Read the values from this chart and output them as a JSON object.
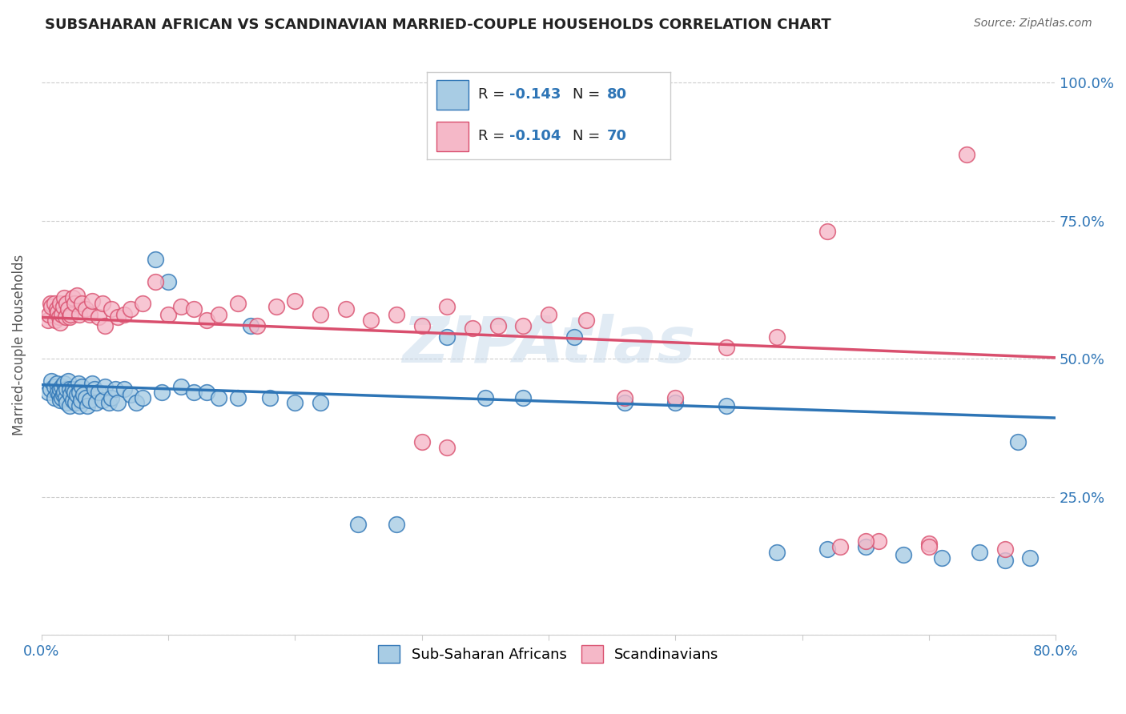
{
  "title": "SUBSAHARAN AFRICAN VS SCANDINAVIAN MARRIED-COUPLE HOUSEHOLDS CORRELATION CHART",
  "source": "Source: ZipAtlas.com",
  "ylabel": "Married-couple Households",
  "legend_label1": "Sub-Saharan Africans",
  "legend_label2": "Scandinavians",
  "R1": "-0.143",
  "N1": "80",
  "R2": "-0.104",
  "N2": "70",
  "color_blue": "#a8cce4",
  "color_pink": "#f5b8c8",
  "line_blue": "#2e75b6",
  "line_pink": "#d94f6e",
  "watermark": "ZIPAtlas",
  "xlim": [
    0.0,
    0.8
  ],
  "ylim": [
    0.0,
    1.05
  ],
  "blue_line_start": 0.453,
  "blue_line_end": 0.393,
  "pink_line_start": 0.575,
  "pink_line_end": 0.502,
  "blue_x": [
    0.005,
    0.007,
    0.008,
    0.01,
    0.01,
    0.012,
    0.013,
    0.014,
    0.015,
    0.015,
    0.016,
    0.016,
    0.017,
    0.018,
    0.018,
    0.019,
    0.02,
    0.02,
    0.021,
    0.022,
    0.022,
    0.023,
    0.025,
    0.025,
    0.026,
    0.027,
    0.028,
    0.029,
    0.03,
    0.03,
    0.031,
    0.032,
    0.033,
    0.035,
    0.036,
    0.038,
    0.04,
    0.042,
    0.043,
    0.045,
    0.048,
    0.05,
    0.053,
    0.055,
    0.058,
    0.06,
    0.065,
    0.07,
    0.075,
    0.08,
    0.09,
    0.095,
    0.1,
    0.11,
    0.12,
    0.13,
    0.14,
    0.155,
    0.165,
    0.18,
    0.2,
    0.22,
    0.25,
    0.28,
    0.32,
    0.35,
    0.38,
    0.42,
    0.46,
    0.5,
    0.54,
    0.58,
    0.62,
    0.65,
    0.68,
    0.71,
    0.74,
    0.76,
    0.77,
    0.78
  ],
  "blue_y": [
    0.44,
    0.445,
    0.46,
    0.45,
    0.43,
    0.455,
    0.44,
    0.435,
    0.445,
    0.425,
    0.45,
    0.43,
    0.435,
    0.455,
    0.44,
    0.43,
    0.445,
    0.42,
    0.46,
    0.445,
    0.415,
    0.435,
    0.445,
    0.425,
    0.44,
    0.42,
    0.435,
    0.455,
    0.44,
    0.415,
    0.425,
    0.45,
    0.435,
    0.43,
    0.415,
    0.425,
    0.455,
    0.445,
    0.42,
    0.44,
    0.425,
    0.45,
    0.42,
    0.43,
    0.445,
    0.42,
    0.445,
    0.435,
    0.42,
    0.43,
    0.68,
    0.44,
    0.64,
    0.45,
    0.44,
    0.44,
    0.43,
    0.43,
    0.56,
    0.43,
    0.42,
    0.42,
    0.2,
    0.2,
    0.54,
    0.43,
    0.43,
    0.54,
    0.42,
    0.42,
    0.415,
    0.15,
    0.155,
    0.16,
    0.145,
    0.14,
    0.15,
    0.135,
    0.35,
    0.14
  ],
  "pink_x": [
    0.005,
    0.006,
    0.007,
    0.008,
    0.01,
    0.011,
    0.012,
    0.013,
    0.014,
    0.015,
    0.015,
    0.016,
    0.017,
    0.018,
    0.019,
    0.02,
    0.021,
    0.022,
    0.023,
    0.025,
    0.026,
    0.028,
    0.03,
    0.032,
    0.035,
    0.038,
    0.04,
    0.045,
    0.048,
    0.05,
    0.055,
    0.06,
    0.065,
    0.07,
    0.08,
    0.09,
    0.1,
    0.11,
    0.12,
    0.13,
    0.14,
    0.155,
    0.17,
    0.185,
    0.2,
    0.22,
    0.24,
    0.26,
    0.28,
    0.3,
    0.32,
    0.34,
    0.36,
    0.38,
    0.4,
    0.43,
    0.46,
    0.5,
    0.54,
    0.58,
    0.62,
    0.66,
    0.7,
    0.73,
    0.76,
    0.3,
    0.32,
    0.63,
    0.65,
    0.7
  ],
  "pink_y": [
    0.57,
    0.58,
    0.6,
    0.595,
    0.6,
    0.57,
    0.59,
    0.585,
    0.575,
    0.6,
    0.565,
    0.58,
    0.595,
    0.61,
    0.575,
    0.6,
    0.59,
    0.575,
    0.58,
    0.61,
    0.6,
    0.615,
    0.58,
    0.6,
    0.59,
    0.58,
    0.605,
    0.575,
    0.6,
    0.56,
    0.59,
    0.575,
    0.58,
    0.59,
    0.6,
    0.64,
    0.58,
    0.595,
    0.59,
    0.57,
    0.58,
    0.6,
    0.56,
    0.595,
    0.605,
    0.58,
    0.59,
    0.57,
    0.58,
    0.56,
    0.595,
    0.555,
    0.56,
    0.56,
    0.58,
    0.57,
    0.43,
    0.43,
    0.52,
    0.54,
    0.73,
    0.17,
    0.165,
    0.87,
    0.155,
    0.35,
    0.34,
    0.16,
    0.17,
    0.16
  ]
}
